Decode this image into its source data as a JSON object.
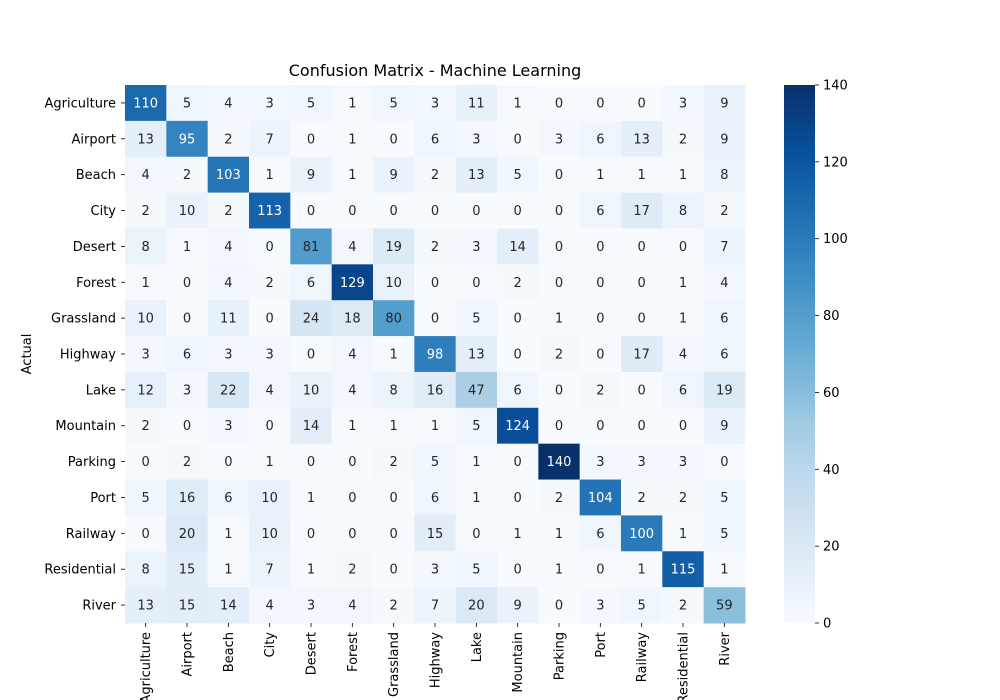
{
  "chart_data": {
    "type": "heatmap",
    "title": "Confusion Matrix - Machine Learning",
    "xlabel": "",
    "ylabel": "Actual",
    "row_labels": [
      "Agriculture",
      "Airport",
      "Beach",
      "City",
      "Desert",
      "Forest",
      "Grassland",
      "Highway",
      "Lake",
      "Mountain",
      "Parking",
      "Port",
      "Railway",
      "Residential",
      "River"
    ],
    "col_labels": [
      "Agriculture",
      "Airport",
      "Beach",
      "City",
      "Desert",
      "Forest",
      "Grassland",
      "Highway",
      "Lake",
      "Mountain",
      "Parking",
      "Port",
      "Railway",
      "Residential",
      "River"
    ],
    "values": [
      [
        110,
        5,
        4,
        3,
        5,
        1,
        5,
        3,
        11,
        1,
        0,
        0,
        0,
        3,
        9
      ],
      [
        13,
        95,
        2,
        7,
        0,
        1,
        0,
        6,
        3,
        0,
        3,
        6,
        13,
        2,
        9
      ],
      [
        4,
        2,
        103,
        1,
        9,
        1,
        9,
        2,
        13,
        5,
        0,
        1,
        1,
        1,
        8
      ],
      [
        2,
        10,
        2,
        113,
        0,
        0,
        0,
        0,
        0,
        0,
        0,
        6,
        17,
        8,
        2
      ],
      [
        8,
        1,
        4,
        0,
        81,
        4,
        19,
        2,
        3,
        14,
        0,
        0,
        0,
        0,
        7
      ],
      [
        1,
        0,
        4,
        2,
        6,
        129,
        10,
        0,
        0,
        2,
        0,
        0,
        0,
        1,
        4
      ],
      [
        10,
        0,
        11,
        0,
        24,
        18,
        80,
        0,
        5,
        0,
        1,
        0,
        0,
        1,
        6
      ],
      [
        3,
        6,
        3,
        3,
        0,
        4,
        1,
        98,
        13,
        0,
        2,
        0,
        17,
        4,
        6
      ],
      [
        12,
        3,
        22,
        4,
        10,
        4,
        8,
        16,
        47,
        6,
        0,
        2,
        0,
        6,
        19
      ],
      [
        2,
        0,
        3,
        0,
        14,
        1,
        1,
        1,
        5,
        124,
        0,
        0,
        0,
        0,
        9
      ],
      [
        0,
        2,
        0,
        1,
        0,
        0,
        2,
        5,
        1,
        0,
        140,
        3,
        3,
        3,
        0
      ],
      [
        5,
        16,
        6,
        10,
        1,
        0,
        0,
        6,
        1,
        0,
        2,
        104,
        2,
        2,
        5
      ],
      [
        0,
        20,
        1,
        10,
        0,
        0,
        0,
        15,
        0,
        1,
        1,
        6,
        100,
        1,
        5
      ],
      [
        8,
        15,
        1,
        7,
        1,
        2,
        0,
        3,
        5,
        0,
        1,
        0,
        1,
        115,
        1
      ],
      [
        13,
        15,
        14,
        4,
        3,
        4,
        2,
        7,
        20,
        9,
        0,
        3,
        5,
        2,
        59
      ]
    ],
    "colorbar": {
      "range": [
        0,
        140
      ],
      "ticks": [
        0,
        20,
        40,
        60,
        80,
        100,
        120,
        140
      ],
      "colormap": "Blues"
    }
  }
}
